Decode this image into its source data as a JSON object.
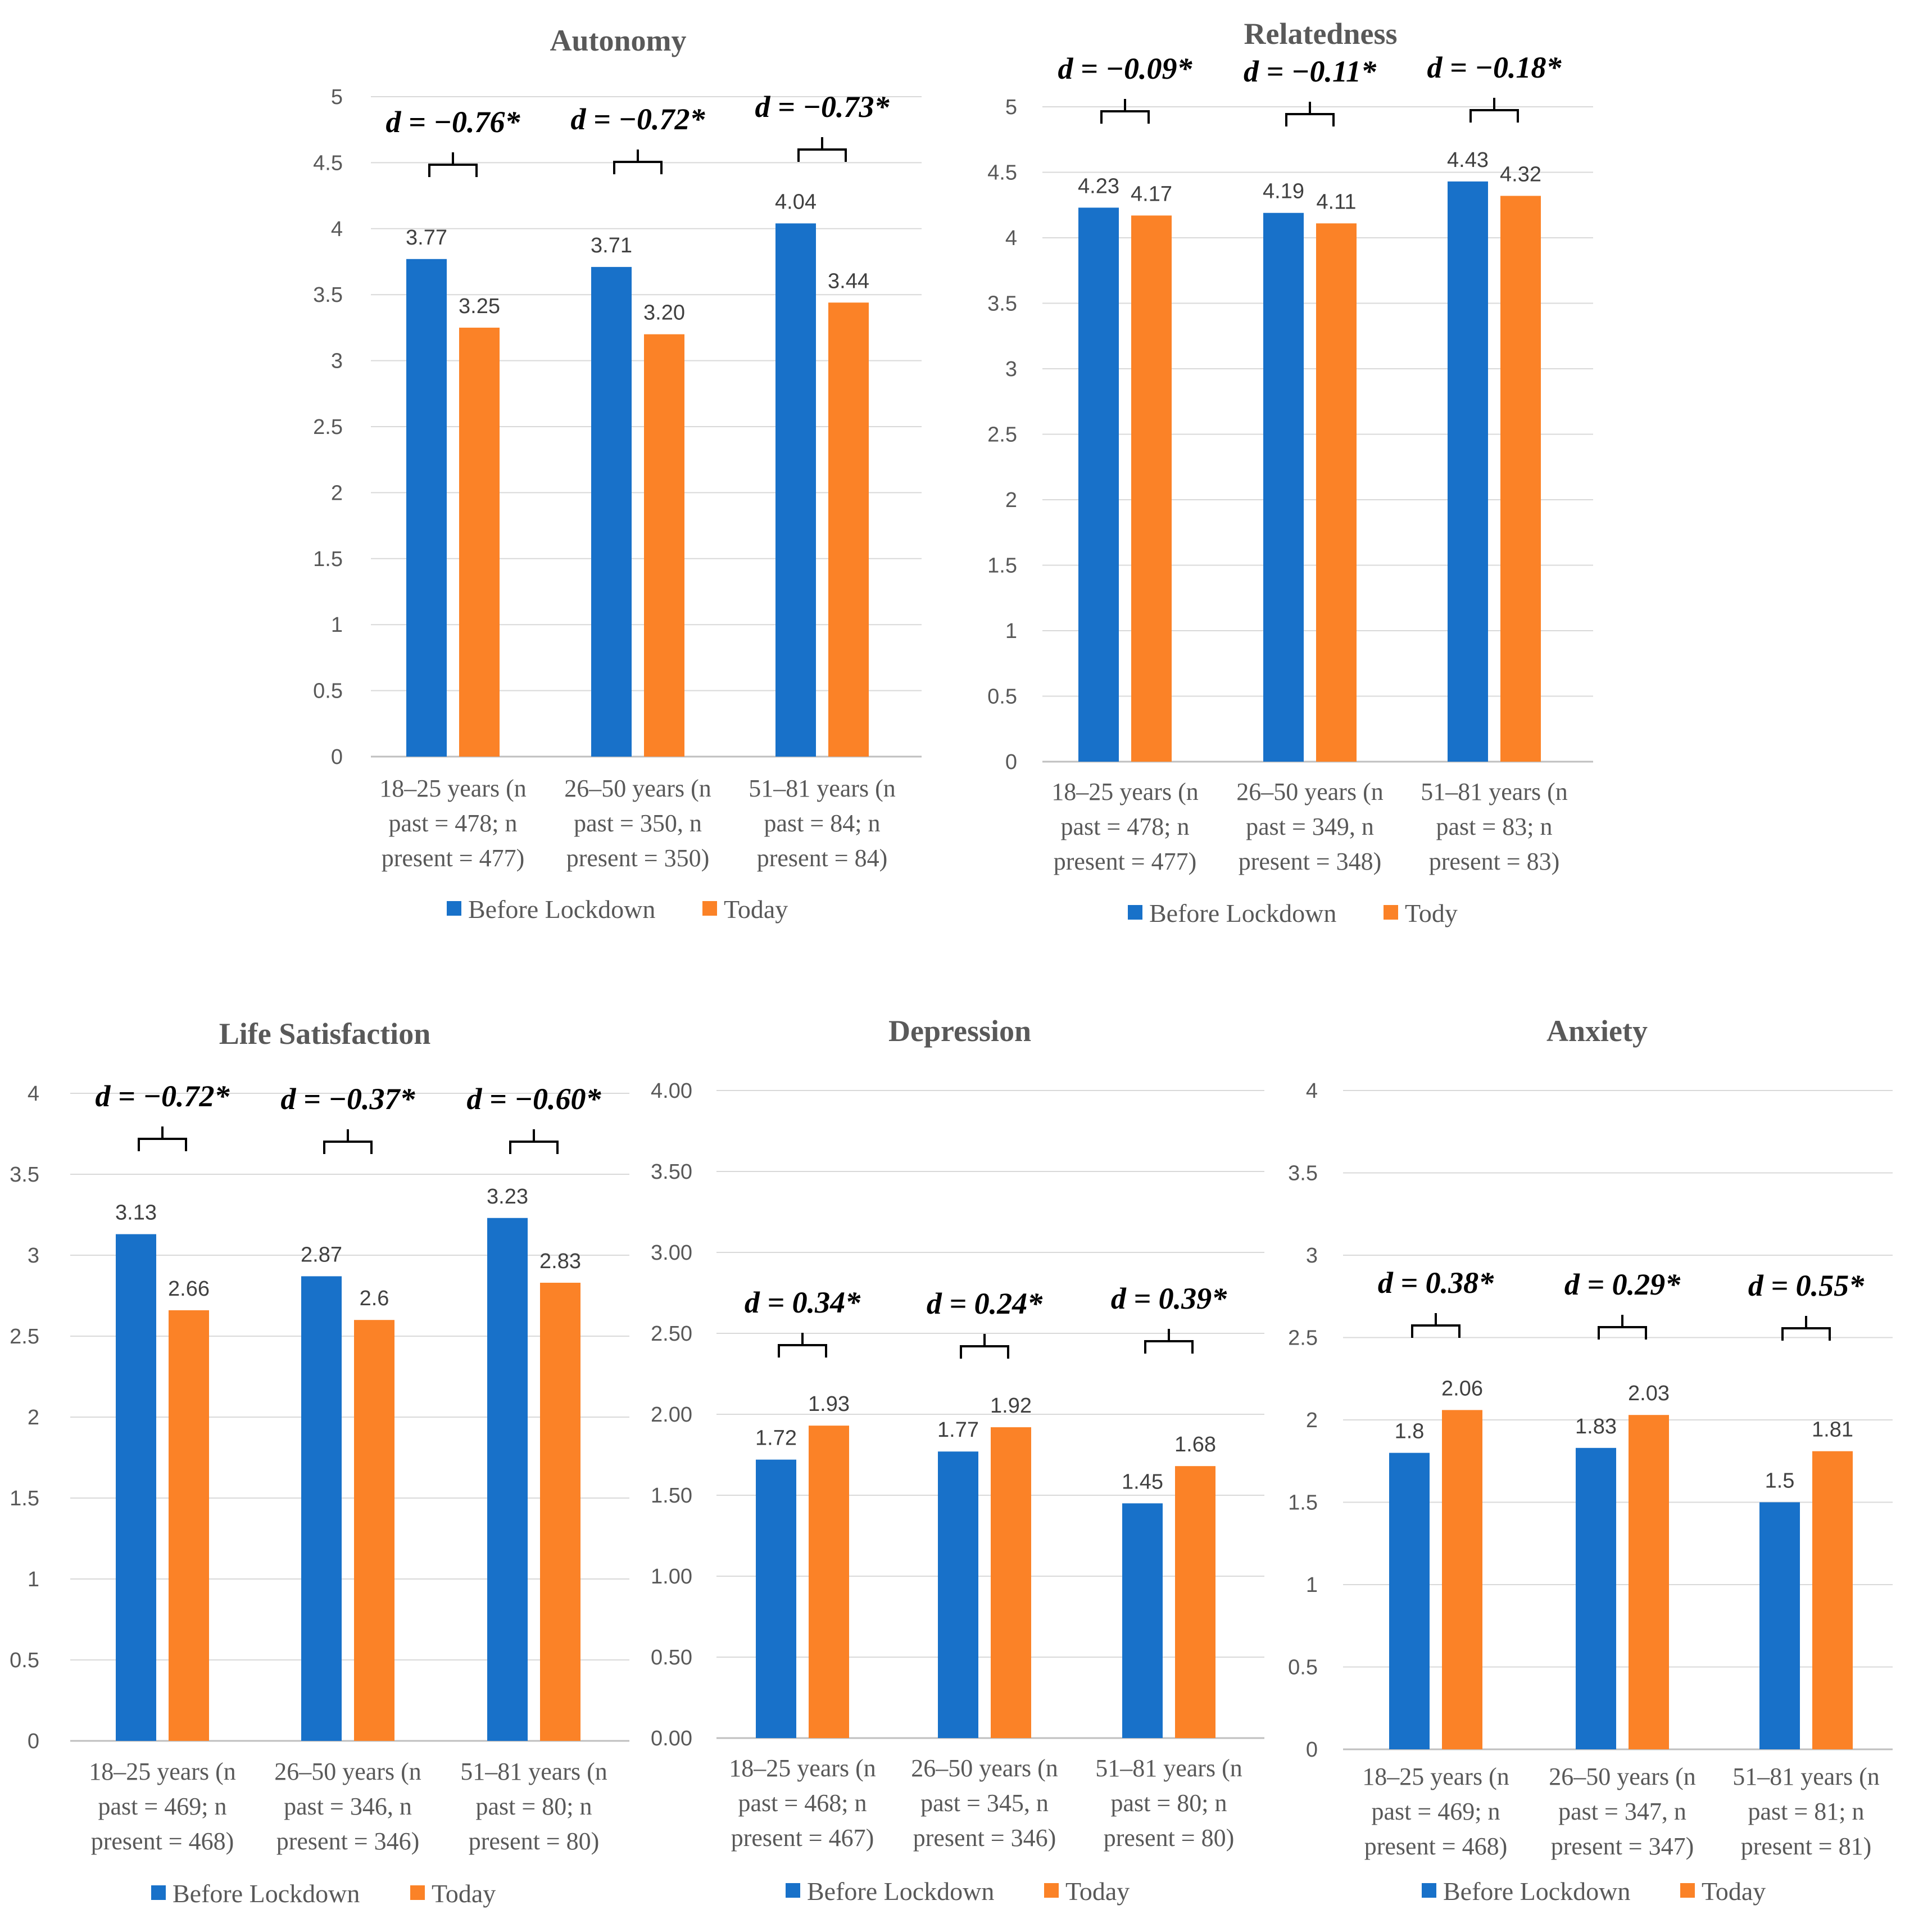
{
  "chart_data": [
    {
      "type": "bar",
      "title": "Autonomy",
      "ylim": [
        0,
        5
      ],
      "yticks": [
        "0",
        "0.5",
        "1",
        "1.5",
        "2",
        "2.5",
        "3",
        "3.5",
        "4",
        "4.5",
        "5"
      ],
      "categories": [
        [
          "18–25 years (n",
          "past = 478; n",
          "present = 477)"
        ],
        [
          "26–50 years (n",
          "past = 350, n",
          "present = 350)"
        ],
        [
          "51–81 years (n",
          "past = 84; n",
          "present = 84)"
        ]
      ],
      "series": [
        {
          "name": "Before Lockdown",
          "color": "#1871C9",
          "values": [
            3.77,
            3.71,
            4.04
          ],
          "labels": [
            "3.77",
            "3.71",
            "4.04"
          ]
        },
        {
          "name": "Today",
          "color": "#FB8227",
          "values": [
            3.25,
            3.2,
            3.44
          ],
          "labels": [
            "3.25",
            "3.20",
            "3.44"
          ]
        }
      ],
      "effect_sizes": [
        "d = −0.76*",
        "d = −0.72*",
        "d = −0.73*"
      ],
      "legend": "bottom"
    },
    {
      "type": "bar",
      "title": "Relatedness",
      "ylim": [
        0,
        5
      ],
      "yticks": [
        "0",
        "0.5",
        "1",
        "1.5",
        "2",
        "2.5",
        "3",
        "3.5",
        "4",
        "4.5",
        "5"
      ],
      "categories": [
        [
          "18–25 years (n",
          "past = 478; n",
          "present = 477)"
        ],
        [
          "26–50 years (n",
          "past = 349, n",
          "present = 348)"
        ],
        [
          "51–81 years (n",
          "past = 83; n",
          "present = 83)"
        ]
      ],
      "series": [
        {
          "name": "Before Lockdown",
          "color": "#1871C9",
          "values": [
            4.23,
            4.19,
            4.43
          ],
          "labels": [
            "4.23",
            "4.19",
            "4.43"
          ]
        },
        {
          "name": "Tody",
          "color": "#FB8227",
          "values": [
            4.17,
            4.11,
            4.32
          ],
          "labels": [
            "4.17",
            "4.11",
            "4.32"
          ]
        }
      ],
      "effect_sizes": [
        "d = −0.09*",
        "d = −0.11*",
        "d = −0.18*"
      ],
      "legend": "bottom"
    },
    {
      "type": "bar",
      "title": "Life Satisfaction",
      "ylim": [
        0,
        4
      ],
      "yticks": [
        "0",
        "0.5",
        "1",
        "1.5",
        "2",
        "2.5",
        "3",
        "3.5",
        "4"
      ],
      "categories": [
        [
          "18–25 years (n",
          "past = 469; n",
          "present = 468)"
        ],
        [
          "26–50 years (n",
          "past = 346, n",
          "present = 346)"
        ],
        [
          "51–81 years (n",
          "past = 80; n",
          "present = 80)"
        ]
      ],
      "series": [
        {
          "name": "Before Lockdown",
          "color": "#1871C9",
          "values": [
            3.13,
            2.87,
            3.23
          ],
          "labels": [
            "3.13",
            "2.87",
            "3.23"
          ]
        },
        {
          "name": "Today",
          "color": "#FB8227",
          "values": [
            2.66,
            2.6,
            2.83
          ],
          "labels": [
            "2.66",
            "2.6",
            "2.83"
          ]
        }
      ],
      "effect_sizes": [
        "d = −0.72*",
        "d = −0.37*",
        "d = −0.60*"
      ],
      "legend": "bottom"
    },
    {
      "type": "bar",
      "title": "Depression",
      "ylim": [
        0,
        4
      ],
      "yticks": [
        "0.00",
        "0.50",
        "1.00",
        "1.50",
        "2.00",
        "2.50",
        "3.00",
        "3.50",
        "4.00"
      ],
      "categories": [
        [
          "18–25 years (n",
          "past = 468; n",
          "present = 467)"
        ],
        [
          "26–50 years (n",
          "past = 345, n",
          "present = 346)"
        ],
        [
          "51–81 years (n",
          "past = 80; n",
          "present = 80)"
        ]
      ],
      "series": [
        {
          "name": "Before Lockdown",
          "color": "#1871C9",
          "values": [
            1.72,
            1.77,
            1.45
          ],
          "labels": [
            "1.72",
            "1.77",
            "1.45"
          ]
        },
        {
          "name": "Today",
          "color": "#FB8227",
          "values": [
            1.93,
            1.92,
            1.68
          ],
          "labels": [
            "1.93",
            "1.92",
            "1.68"
          ]
        }
      ],
      "effect_sizes": [
        "d = 0.34*",
        "d = 0.24*",
        "d = 0.39*"
      ],
      "legend": "bottom"
    },
    {
      "type": "bar",
      "title": "Anxiety",
      "ylim": [
        0,
        4
      ],
      "yticks": [
        "0",
        "0.5",
        "1",
        "1.5",
        "2",
        "2.5",
        "3",
        "3.5",
        "4"
      ],
      "categories": [
        [
          "18–25 years (n",
          "past = 469; n",
          "present = 468)"
        ],
        [
          "26–50 years (n",
          "past = 347, n",
          "present = 347)"
        ],
        [
          "51–81 years (n",
          "past = 81; n",
          "present = 81)"
        ]
      ],
      "series": [
        {
          "name": "Before Lockdown",
          "color": "#1871C9",
          "values": [
            1.8,
            1.83,
            1.5
          ],
          "labels": [
            "1.8",
            "1.83",
            "1.5"
          ]
        },
        {
          "name": "Today",
          "color": "#FB8227",
          "values": [
            2.06,
            2.03,
            1.81
          ],
          "labels": [
            "2.06",
            "2.03",
            "1.81"
          ]
        }
      ],
      "effect_sizes": [
        "d = 0.38*",
        "d = 0.29*",
        "d = 0.55*"
      ],
      "legend": "bottom"
    }
  ]
}
